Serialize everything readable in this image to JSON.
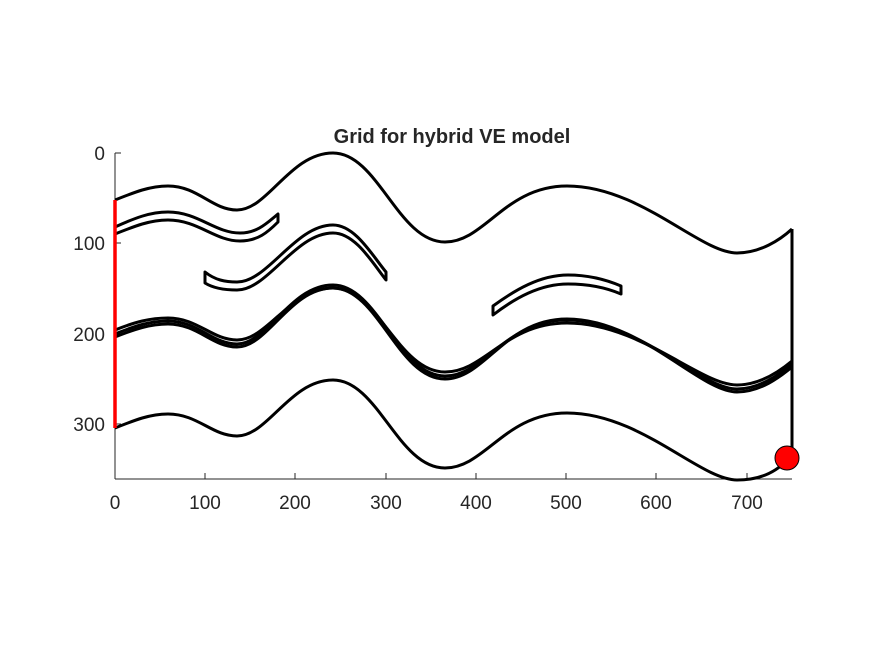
{
  "title": "Grid for hybrid VE model",
  "axes": {
    "x_ticks": [
      "0",
      "100",
      "200",
      "300",
      "400",
      "500",
      "600",
      "700"
    ],
    "y_ticks": [
      "0",
      "100",
      "200",
      "300"
    ],
    "y_direction": "reversed",
    "xlim": [
      0,
      750
    ],
    "ylim": [
      0,
      360
    ]
  },
  "colors": {
    "line": "#000000",
    "boundary": "#ff0000",
    "well_marker": "#ff0000",
    "axis": "#262626"
  },
  "chart_data": {
    "type": "line",
    "title": "Grid for hybrid VE model",
    "xlim": [
      0,
      750
    ],
    "ylim": [
      0,
      360
    ],
    "y_reversed": true,
    "grid": false,
    "surfaces": [
      {
        "x": [
          0,
          60,
          135,
          240,
          365,
          500,
          690,
          750
        ],
        "y": [
          52,
          38,
          62,
          0,
          98,
          37,
          110,
          85
        ]
      },
      {
        "x": [
          0,
          60,
          135,
          240,
          365,
          500,
          690,
          750
        ],
        "y": [
          200,
          186,
          210,
          148,
          245,
          186,
          260,
          235
        ]
      },
      {
        "x": [
          0,
          60,
          135,
          240,
          365,
          500,
          690,
          750
        ],
        "y": [
          304,
          290,
          312,
          250,
          348,
          288,
          362,
          335
        ]
      }
    ],
    "shale_layers": [
      {
        "x_range": [
          0,
          180
        ],
        "top": [
          77,
          60,
          92,
          67
        ]
      },
      {
        "x_range": [
          100,
          300
        ],
        "top": [
          130,
          150,
          80,
          140
        ]
      },
      {
        "x_range": [
          420,
          560
        ],
        "top": [
          170,
          136,
          148
        ]
      }
    ],
    "boundary": {
      "x": 0,
      "y_range": [
        52,
        304
      ]
    },
    "right_edge": {
      "x": 750,
      "y_range": [
        85,
        340
      ]
    },
    "well": {
      "x": 748,
      "y": 340
    }
  }
}
